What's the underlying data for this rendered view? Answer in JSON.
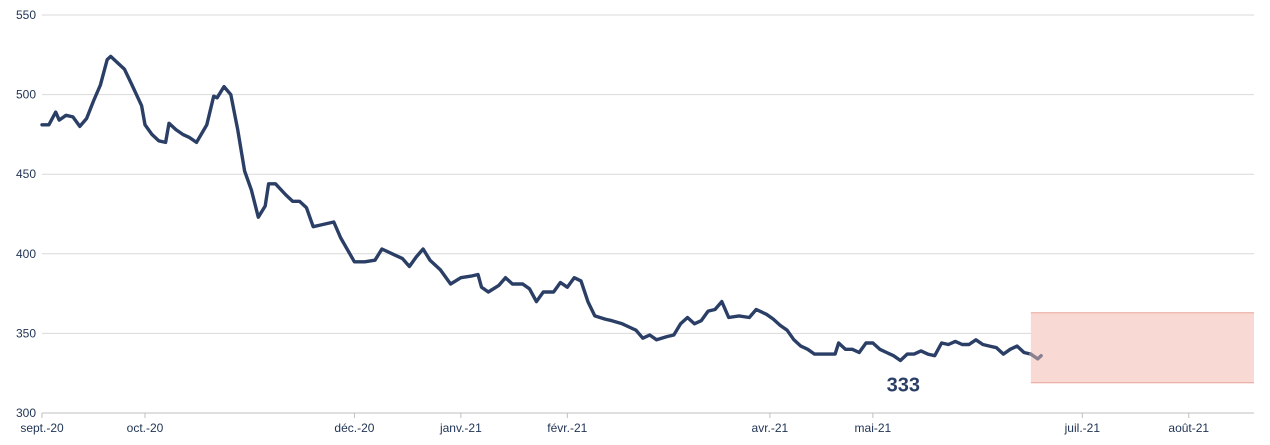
{
  "chart_data": {
    "type": "line",
    "title": "",
    "xlabel": "",
    "ylabel": "",
    "ylim": [
      300,
      550
    ],
    "yticks": [
      300,
      350,
      400,
      450,
      500,
      550
    ],
    "xlim": [
      "2020-09-01",
      "2021-08-20"
    ],
    "xticks": [
      {
        "label": "sept.-20",
        "date": "2020-09-01"
      },
      {
        "label": "oct.-20",
        "date": "2020-10-01"
      },
      {
        "label": "déc.-20",
        "date": "2020-12-01"
      },
      {
        "label": "janv.-21",
        "date": "2021-01-01"
      },
      {
        "label": "févr.-21",
        "date": "2021-02-01"
      },
      {
        "label": "avr.-21",
        "date": "2021-04-01"
      },
      {
        "label": "mai-21",
        "date": "2021-05-01"
      },
      {
        "label": "juil.-21",
        "date": "2021-07-01"
      },
      {
        "label": "août-21",
        "date": "2021-08-01"
      }
    ],
    "grid": true,
    "colors": {
      "main": "#2b3f66",
      "forecast": "#8a8091",
      "band_fill": "#f8d9d3",
      "band_edge": "#e8a69c",
      "grid": "#d9d9d9",
      "axis": "#bfbfbf"
    },
    "series": [
      {
        "values": [
          [
            "2020-09-01",
            481
          ],
          [
            "2020-09-03",
            481
          ],
          [
            "2020-09-05",
            489
          ],
          [
            "2020-09-06",
            484
          ],
          [
            "2020-09-08",
            487
          ],
          [
            "2020-09-10",
            486
          ],
          [
            "2020-09-12",
            480
          ],
          [
            "2020-09-14",
            485
          ],
          [
            "2020-09-16",
            496
          ],
          [
            "2020-09-18",
            506
          ],
          [
            "2020-09-20",
            522
          ],
          [
            "2020-09-21",
            524
          ],
          [
            "2020-09-23",
            520
          ],
          [
            "2020-09-25",
            516
          ],
          [
            "2020-09-27",
            507
          ],
          [
            "2020-09-30",
            493
          ],
          [
            "2020-10-01",
            481
          ],
          [
            "2020-10-03",
            475
          ],
          [
            "2020-10-05",
            471
          ],
          [
            "2020-10-07",
            470
          ],
          [
            "2020-10-08",
            482
          ],
          [
            "2020-10-10",
            478
          ],
          [
            "2020-10-12",
            475
          ],
          [
            "2020-10-14",
            473
          ],
          [
            "2020-10-16",
            470
          ],
          [
            "2020-10-19",
            481
          ],
          [
            "2020-10-21",
            499
          ],
          [
            "2020-10-22",
            498
          ],
          [
            "2020-10-24",
            505
          ],
          [
            "2020-10-26",
            500
          ],
          [
            "2020-10-28",
            478
          ],
          [
            "2020-10-30",
            452
          ],
          [
            "2020-11-01",
            440
          ],
          [
            "2020-11-03",
            423
          ],
          [
            "2020-11-05",
            430
          ],
          [
            "2020-11-06",
            444
          ],
          [
            "2020-11-08",
            444
          ],
          [
            "2020-11-11",
            437
          ],
          [
            "2020-11-13",
            433
          ],
          [
            "2020-11-15",
            433
          ],
          [
            "2020-11-17",
            429
          ],
          [
            "2020-11-19",
            417
          ],
          [
            "2020-11-21",
            418
          ],
          [
            "2020-11-25",
            420
          ],
          [
            "2020-11-27",
            410
          ],
          [
            "2020-12-01",
            395
          ],
          [
            "2020-12-04",
            395
          ],
          [
            "2020-12-07",
            396
          ],
          [
            "2020-12-09",
            403
          ],
          [
            "2020-12-12",
            400
          ],
          [
            "2020-12-15",
            397
          ],
          [
            "2020-12-17",
            392
          ],
          [
            "2020-12-19",
            398
          ],
          [
            "2020-12-21",
            403
          ],
          [
            "2020-12-23",
            396
          ],
          [
            "2020-12-26",
            390
          ],
          [
            "2020-12-29",
            381
          ],
          [
            "2021-01-01",
            385
          ],
          [
            "2021-01-04",
            386
          ],
          [
            "2021-01-06",
            387
          ],
          [
            "2021-01-07",
            379
          ],
          [
            "2021-01-09",
            376
          ],
          [
            "2021-01-12",
            380
          ],
          [
            "2021-01-14",
            385
          ],
          [
            "2021-01-16",
            381
          ],
          [
            "2021-01-19",
            381
          ],
          [
            "2021-01-21",
            378
          ],
          [
            "2021-01-23",
            370
          ],
          [
            "2021-01-25",
            376
          ],
          [
            "2021-01-28",
            376
          ],
          [
            "2021-01-30",
            382
          ],
          [
            "2021-02-01",
            379
          ],
          [
            "2021-02-03",
            385
          ],
          [
            "2021-02-05",
            383
          ],
          [
            "2021-02-07",
            370
          ],
          [
            "2021-02-09",
            361
          ],
          [
            "2021-02-12",
            359
          ],
          [
            "2021-02-14",
            358
          ],
          [
            "2021-02-17",
            356
          ],
          [
            "2021-02-19",
            354
          ],
          [
            "2021-02-21",
            352
          ],
          [
            "2021-02-23",
            347
          ],
          [
            "2021-02-25",
            349
          ],
          [
            "2021-02-27",
            346
          ],
          [
            "2021-03-02",
            348
          ],
          [
            "2021-03-04",
            349
          ],
          [
            "2021-03-06",
            356
          ],
          [
            "2021-03-08",
            360
          ],
          [
            "2021-03-10",
            356
          ],
          [
            "2021-03-12",
            358
          ],
          [
            "2021-03-14",
            364
          ],
          [
            "2021-03-16",
            365
          ],
          [
            "2021-03-18",
            370
          ],
          [
            "2021-03-20",
            360
          ],
          [
            "2021-03-23",
            361
          ],
          [
            "2021-03-26",
            360
          ],
          [
            "2021-03-28",
            365
          ],
          [
            "2021-03-31",
            362
          ],
          [
            "2021-04-02",
            359
          ],
          [
            "2021-04-04",
            355
          ],
          [
            "2021-04-06",
            352
          ],
          [
            "2021-04-08",
            346
          ],
          [
            "2021-04-10",
            342
          ],
          [
            "2021-04-12",
            340
          ],
          [
            "2021-04-14",
            337
          ],
          [
            "2021-04-17",
            337
          ],
          [
            "2021-04-20",
            337
          ],
          [
            "2021-04-21",
            344
          ],
          [
            "2021-04-23",
            340
          ],
          [
            "2021-04-25",
            340
          ],
          [
            "2021-04-27",
            338
          ],
          [
            "2021-04-29",
            344
          ],
          [
            "2021-05-01",
            344
          ],
          [
            "2021-05-03",
            340
          ],
          [
            "2021-05-05",
            338
          ],
          [
            "2021-05-07",
            336
          ],
          [
            "2021-05-09",
            333
          ],
          [
            "2021-05-11",
            337
          ],
          [
            "2021-05-13",
            337
          ],
          [
            "2021-05-15",
            339
          ],
          [
            "2021-05-17",
            337
          ],
          [
            "2021-05-19",
            336
          ],
          [
            "2021-05-21",
            344
          ],
          [
            "2021-05-23",
            343
          ],
          [
            "2021-05-25",
            345
          ],
          [
            "2021-05-27",
            343
          ],
          [
            "2021-05-29",
            343
          ],
          [
            "2021-05-31",
            346
          ],
          [
            "2021-06-02",
            343
          ],
          [
            "2021-06-04",
            342
          ],
          [
            "2021-06-06",
            341
          ],
          [
            "2021-06-08",
            337
          ],
          [
            "2021-06-10",
            340
          ],
          [
            "2021-06-12",
            342
          ],
          [
            "2021-06-14",
            338
          ],
          [
            "2021-06-16",
            337
          ]
        ]
      },
      {
        "values": [
          [
            "2021-06-16",
            337
          ],
          [
            "2021-06-18",
            334
          ],
          [
            "2021-06-19",
            336
          ]
        ]
      }
    ],
    "band": {
      "x_start": "2021-06-16",
      "x_end": "2021-08-20",
      "y_low": 319,
      "y_high": 363
    },
    "annotations": [
      {
        "text": "333",
        "x": "2021-05-09",
        "y": 333
      }
    ]
  }
}
